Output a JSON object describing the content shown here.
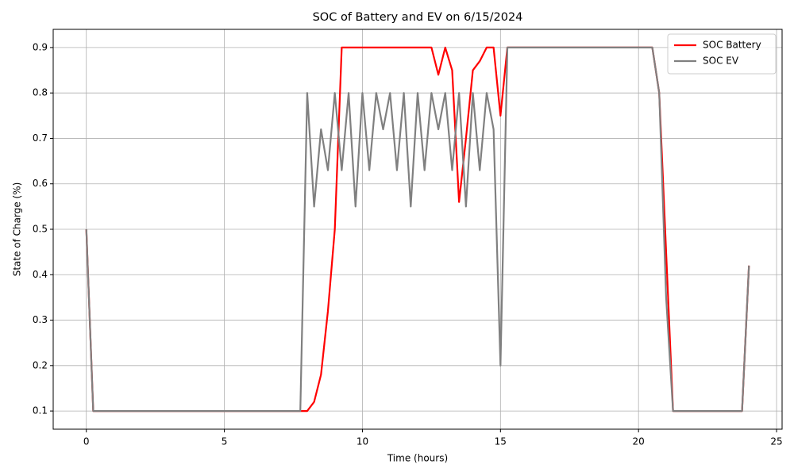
{
  "chart_data": {
    "type": "line",
    "title": "SOC of Battery and EV on 6/15/2024",
    "x_label": "Time (hours)",
    "y_label": "State of Charge (%)",
    "x": [
      0,
      0.25,
      0.5,
      0.75,
      1,
      1.25,
      1.5,
      1.75,
      2,
      2.25,
      2.5,
      2.75,
      3,
      3.25,
      3.5,
      3.75,
      4,
      4.25,
      4.5,
      4.75,
      5,
      5.25,
      5.5,
      5.75,
      6,
      6.25,
      6.5,
      6.75,
      7,
      7.25,
      7.5,
      7.75,
      8,
      8.25,
      8.5,
      8.75,
      9,
      9.25,
      9.5,
      9.75,
      10,
      10.25,
      10.5,
      10.75,
      11,
      11.25,
      11.5,
      11.75,
      12,
      12.25,
      12.5,
      12.75,
      13,
      13.25,
      13.5,
      13.75,
      14,
      14.25,
      14.5,
      14.75,
      15,
      15.25,
      15.5,
      15.75,
      16,
      16.25,
      16.5,
      16.75,
      17,
      17.25,
      17.5,
      17.75,
      18,
      18.25,
      18.5,
      18.75,
      19,
      19.25,
      19.5,
      19.75,
      20,
      20.25,
      20.5,
      20.75,
      21,
      21.25,
      21.5,
      21.75,
      22,
      22.25,
      22.5,
      22.75,
      23,
      23.25,
      23.5,
      23.75,
      24
    ],
    "series": [
      {
        "name": "SOC Battery",
        "color": "#ff0000",
        "values": [
          0.5,
          0.1,
          0.1,
          0.1,
          0.1,
          0.1,
          0.1,
          0.1,
          0.1,
          0.1,
          0.1,
          0.1,
          0.1,
          0.1,
          0.1,
          0.1,
          0.1,
          0.1,
          0.1,
          0.1,
          0.1,
          0.1,
          0.1,
          0.1,
          0.1,
          0.1,
          0.1,
          0.1,
          0.1,
          0.1,
          0.1,
          0.1,
          0.1,
          0.12,
          0.18,
          0.32,
          0.5,
          0.9,
          0.9,
          0.9,
          0.9,
          0.9,
          0.9,
          0.9,
          0.9,
          0.9,
          0.9,
          0.9,
          0.9,
          0.9,
          0.9,
          0.84,
          0.9,
          0.85,
          0.56,
          0.7,
          0.85,
          0.87,
          0.9,
          0.9,
          0.75,
          0.9,
          0.9,
          0.9,
          0.9,
          0.9,
          0.9,
          0.9,
          0.9,
          0.9,
          0.9,
          0.9,
          0.9,
          0.9,
          0.9,
          0.9,
          0.9,
          0.9,
          0.9,
          0.9,
          0.9,
          0.9,
          0.9,
          0.8,
          0.45,
          0.1,
          0.1,
          0.1,
          0.1,
          0.1,
          0.1,
          0.1,
          0.1,
          0.1,
          0.1,
          0.1,
          0.42
        ]
      },
      {
        "name": "SOC EV",
        "color": "#808080",
        "values": [
          0.5,
          0.1,
          0.1,
          0.1,
          0.1,
          0.1,
          0.1,
          0.1,
          0.1,
          0.1,
          0.1,
          0.1,
          0.1,
          0.1,
          0.1,
          0.1,
          0.1,
          0.1,
          0.1,
          0.1,
          0.1,
          0.1,
          0.1,
          0.1,
          0.1,
          0.1,
          0.1,
          0.1,
          0.1,
          0.1,
          0.1,
          0.1,
          0.8,
          0.55,
          0.72,
          0.63,
          0.8,
          0.63,
          0.8,
          0.55,
          0.8,
          0.63,
          0.8,
          0.72,
          0.8,
          0.63,
          0.8,
          0.55,
          0.8,
          0.63,
          0.8,
          0.72,
          0.8,
          0.63,
          0.8,
          0.55,
          0.8,
          0.63,
          0.8,
          0.72,
          0.2,
          0.9,
          0.9,
          0.9,
          0.9,
          0.9,
          0.9,
          0.9,
          0.9,
          0.9,
          0.9,
          0.9,
          0.9,
          0.9,
          0.9,
          0.9,
          0.9,
          0.9,
          0.9,
          0.9,
          0.9,
          0.9,
          0.9,
          0.8,
          0.35,
          0.1,
          0.1,
          0.1,
          0.1,
          0.1,
          0.1,
          0.1,
          0.1,
          0.1,
          0.1,
          0.1,
          0.42
        ]
      }
    ],
    "xlim": [
      -1.2,
      25.2
    ],
    "xticks": [
      0,
      5,
      10,
      15,
      20,
      25
    ],
    "ylim": [
      0.06,
      0.94
    ],
    "yticks": [
      0.1,
      0.2,
      0.3,
      0.4,
      0.5,
      0.6,
      0.7,
      0.8,
      0.9
    ],
    "grid": true,
    "legend": "upper right"
  }
}
